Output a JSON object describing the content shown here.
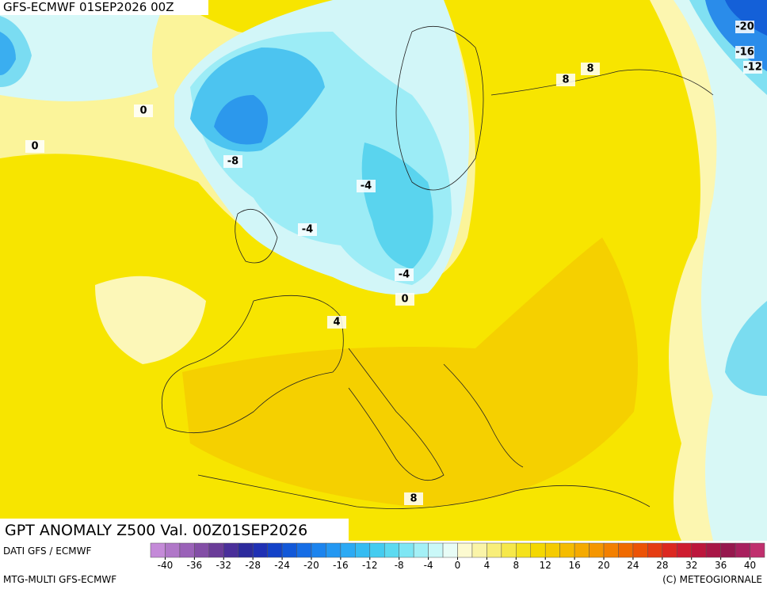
{
  "header": {
    "title": "GFS-ECMWF 01SEP2026 00Z"
  },
  "map": {
    "contour_labels": [
      "0",
      "0",
      "-8",
      "-4",
      "-4",
      "-4",
      "0",
      "4",
      "8",
      "8",
      "8",
      "-20",
      "-16",
      "-12"
    ]
  },
  "footer": {
    "title": "GPT ANOMALY Z500 Val. 00Z01SEP2026",
    "source": "DATI GFS / ECMWF",
    "model": "MTG-MULTI GFS-ECMWF",
    "copyright": "(C) METEOGIORNALE"
  },
  "colorbar": {
    "range": [
      -42,
      42
    ],
    "ticks": [
      -40,
      -36,
      -32,
      -28,
      -24,
      -20,
      -16,
      -12,
      -8,
      -4,
      0,
      4,
      8,
      12,
      16,
      20,
      24,
      28,
      32,
      36,
      40
    ],
    "colors": [
      "#c48ad8",
      "#b077c8",
      "#9a62b8",
      "#834ea6",
      "#6a3c98",
      "#4a2f9a",
      "#2c2a9c",
      "#1f30b4",
      "#1342c8",
      "#1258d8",
      "#166ee6",
      "#1c84ee",
      "#2498f2",
      "#2caaf4",
      "#36bcf2",
      "#44ccf0",
      "#5cdaf0",
      "#7ee6f4",
      "#a4f0f6",
      "#caf8f8",
      "#e8fcf6",
      "#fcfad0",
      "#faf4a8",
      "#f8ee7a",
      "#f6e84a",
      "#f5e21c",
      "#f4d800",
      "#f5cb00",
      "#f5bc00",
      "#f5aa00",
      "#f59600",
      "#f38000",
      "#f06a00",
      "#ec5306",
      "#e53c12",
      "#dc2820",
      "#ce1c30",
      "#bc163c",
      "#a81646",
      "#96184e",
      "#a8205e",
      "#c0306e"
    ]
  }
}
